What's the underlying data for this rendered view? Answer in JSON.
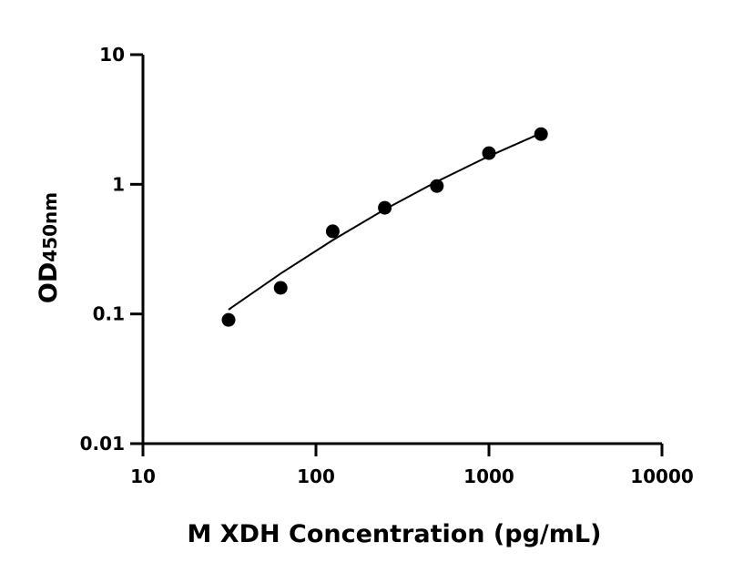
{
  "chart_data": {
    "type": "scatter",
    "xlabel": "M XDH Concentration (pg/mL)",
    "ylabel": "OD",
    "ylabel_subscript": "450nm",
    "xscale": "log",
    "yscale": "log",
    "xlim": [
      10,
      10000
    ],
    "ylim": [
      0.01,
      10
    ],
    "xticks": [
      "10",
      "100",
      "1000",
      "10000"
    ],
    "yticks": [
      "0.01",
      "0.1",
      "1",
      "10"
    ],
    "grid": false,
    "points": {
      "x": [
        31.25,
        62.5,
        125,
        250,
        500,
        1000,
        2000
      ],
      "y": [
        0.09,
        0.159,
        0.434,
        0.659,
        0.97,
        1.74,
        2.44
      ]
    },
    "fit_curve": {
      "x": [
        31.25,
        62.5,
        125,
        250,
        500,
        1000,
        2000
      ],
      "y": [
        0.108,
        0.205,
        0.371,
        0.64,
        1.05,
        1.65,
        2.48
      ]
    },
    "colors": {
      "points": "#000000",
      "curve": "#000000",
      "axes": "#000000"
    }
  }
}
